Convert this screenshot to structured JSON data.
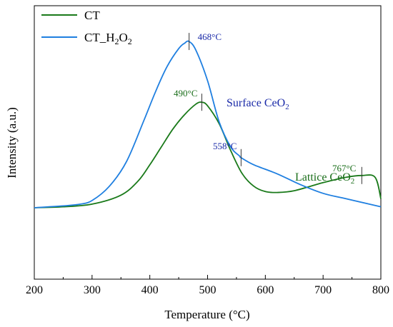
{
  "chart_data": {
    "type": "line",
    "title": "",
    "xlabel": "Temperature (°C)",
    "ylabel": "Intensity (a.u.)",
    "xlim": [
      200,
      800
    ],
    "x_ticks": [
      200,
      300,
      400,
      500,
      600,
      700,
      800
    ],
    "legend_position": "top-left",
    "grid": false,
    "series": [
      {
        "name": "CT",
        "color": "#1a7a1a",
        "x": [
          200,
          250,
          300,
          350,
          380,
          400,
          420,
          440,
          460,
          480,
          490,
          500,
          520,
          540,
          560,
          580,
          600,
          620,
          650,
          700,
          740,
          767,
          790,
          800
        ],
        "y": [
          0.05,
          0.055,
          0.07,
          0.12,
          0.2,
          0.29,
          0.39,
          0.49,
          0.57,
          0.63,
          0.64,
          0.62,
          0.52,
          0.37,
          0.24,
          0.17,
          0.14,
          0.135,
          0.145,
          0.19,
          0.22,
          0.23,
          0.22,
          0.1
        ]
      },
      {
        "name": "CT_H2O2",
        "color": "#1f7fe0",
        "x": [
          200,
          250,
          280,
          300,
          330,
          360,
          390,
          410,
          430,
          450,
          460,
          468,
          480,
          500,
          520,
          540,
          555,
          558,
          580,
          620,
          660,
          700,
          740,
          780,
          800
        ],
        "y": [
          0.05,
          0.06,
          0.07,
          0.09,
          0.17,
          0.31,
          0.54,
          0.7,
          0.84,
          0.94,
          0.97,
          0.98,
          0.93,
          0.76,
          0.53,
          0.39,
          0.34,
          0.33,
          0.29,
          0.24,
          0.18,
          0.13,
          0.1,
          0.07,
          0.055
        ]
      }
    ],
    "peak_markers": [
      {
        "label": "468°C",
        "x": 468,
        "y": 0.98,
        "series": 1
      },
      {
        "label": "490°C",
        "x": 490,
        "y": 0.64,
        "series": 0
      },
      {
        "label": "558°C",
        "x": 558,
        "y": 0.33,
        "series": 1
      },
      {
        "label": "767°C",
        "x": 767,
        "y": 0.23,
        "series": 0
      }
    ],
    "region_labels": [
      {
        "name": "Surface CeO",
        "sub": "2",
        "color": "#1a2aa8"
      },
      {
        "name": "Lattice CeO",
        "sub": "2",
        "color": "#1a6e1a"
      }
    ]
  }
}
